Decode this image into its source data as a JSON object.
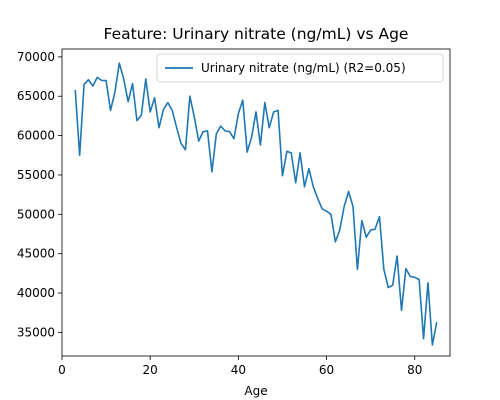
{
  "chart_data": {
    "type": "line",
    "title": "Feature: Urinary nitrate (ng/mL) vs Age",
    "xlabel": "Age",
    "ylabel": "",
    "xlim": [
      0,
      88
    ],
    "ylim": [
      32000,
      71000
    ],
    "x_ticks": [
      0,
      20,
      40,
      60,
      80
    ],
    "y_ticks": [
      35000,
      40000,
      45000,
      50000,
      55000,
      60000,
      65000,
      70000
    ],
    "grid": false,
    "legend_position": "top-right",
    "series": [
      {
        "name": "Urinary nitrate (ng/mL) (R2=0.05)",
        "color": "#1f77b4",
        "x": [
          3,
          4,
          5,
          6,
          7,
          8,
          9,
          10,
          11,
          12,
          13,
          14,
          15,
          16,
          17,
          18,
          19,
          20,
          21,
          22,
          23,
          24,
          25,
          26,
          27,
          28,
          29,
          30,
          31,
          32,
          33,
          34,
          35,
          36,
          37,
          38,
          39,
          40,
          41,
          42,
          43,
          44,
          45,
          46,
          47,
          48,
          49,
          50,
          51,
          52,
          53,
          54,
          55,
          56,
          57,
          58,
          59,
          60,
          61,
          62,
          63,
          64,
          65,
          66,
          67,
          68,
          69,
          70,
          71,
          72,
          73,
          74,
          75,
          76,
          77,
          78,
          79,
          80,
          81,
          82,
          83,
          84,
          85
        ],
        "y": [
          65800,
          57500,
          66500,
          67100,
          66300,
          67400,
          67000,
          67000,
          63200,
          65500,
          69200,
          67200,
          64300,
          66600,
          61900,
          62600,
          67200,
          63000,
          64800,
          61000,
          63300,
          64200,
          63200,
          61000,
          59000,
          58200,
          65000,
          62400,
          59300,
          60500,
          60600,
          55400,
          60200,
          61200,
          60600,
          60500,
          59600,
          62800,
          64500,
          57900,
          59800,
          63000,
          58800,
          64200,
          61000,
          63000,
          63200,
          54900,
          58000,
          57800,
          54000,
          57800,
          53500,
          55800,
          53500,
          52000,
          50700,
          50400,
          50000,
          46500,
          48000,
          51000,
          52900,
          51000,
          43000,
          49200,
          47100,
          48000,
          48100,
          49700,
          43000,
          40700,
          41000,
          44700,
          37800,
          43100,
          42100,
          42000,
          41700,
          34200,
          41300,
          33400,
          36300
        ]
      }
    ]
  }
}
